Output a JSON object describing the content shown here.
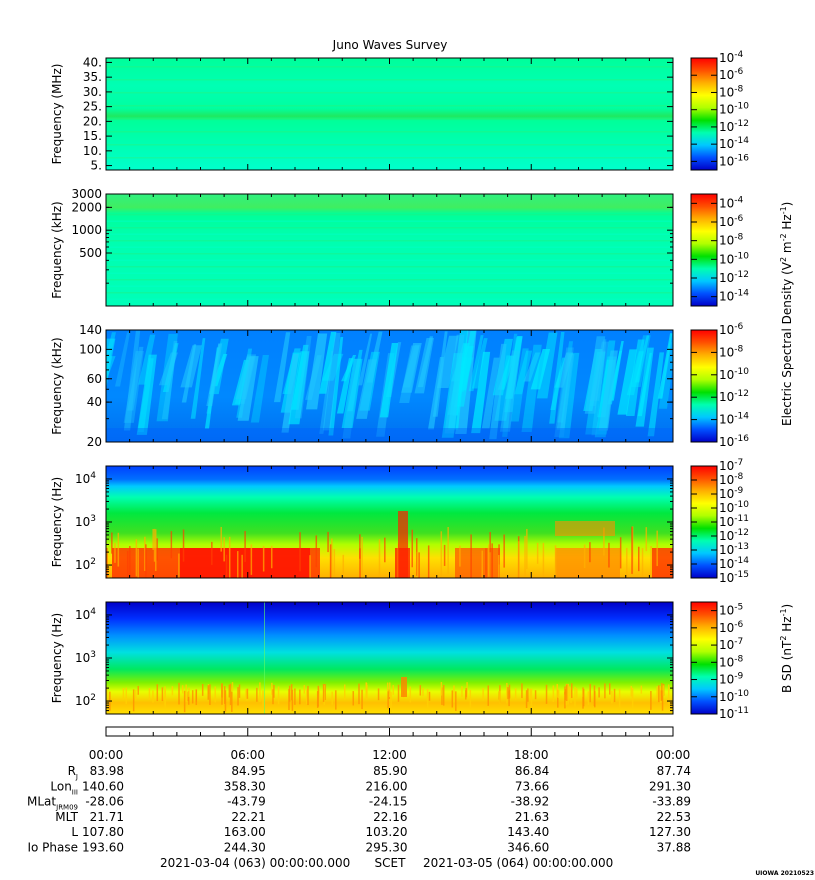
{
  "chart_data": {
    "type": "heatmap",
    "title": "Juno Waves Survey",
    "colorbar_colors": [
      "#0000c8",
      "#0050ff",
      "#00c8ff",
      "#00ffb0",
      "#00e000",
      "#b0ff00",
      "#ffff00",
      "#ffb000",
      "#ff5000",
      "#ff0000"
    ],
    "time_ticks": [
      "00:00",
      "06:00",
      "12:00",
      "18:00",
      "00:00"
    ],
    "panels": [
      {
        "ylabel": "Frequency (MHz)",
        "yscale": "linear",
        "yrange": [
          3.5,
          41.5
        ],
        "yticks": [
          "40.",
          "35.",
          "30.",
          "25.",
          "20.",
          "15.",
          "10.",
          "5."
        ],
        "ytick_values": [
          40,
          35,
          30,
          25,
          20,
          15,
          10,
          5
        ],
        "colorbar": {
          "exponents": [
            "-4",
            "-6",
            "-8",
            "-10",
            "-12",
            "-14",
            "-16"
          ],
          "min_exp": -17,
          "max_exp": -4
        }
      },
      {
        "ylabel": "Frequency (kHz)",
        "yscale": "log",
        "yrange": [
          100,
          3000
        ],
        "yticks": [
          "3000",
          "2000",
          "1000",
          "500"
        ],
        "ytick_values": [
          3000,
          2000,
          1000,
          500
        ],
        "colorbar": {
          "exponents": [
            "-4",
            "-6",
            "-8",
            "-10",
            "-12",
            "-14"
          ],
          "min_exp": -15,
          "max_exp": -3
        }
      },
      {
        "ylabel": "Frequency (kHz)",
        "yscale": "log",
        "yrange": [
          20,
          140
        ],
        "yticks": [
          "140",
          "100",
          "60",
          "40",
          "20"
        ],
        "ytick_values": [
          140,
          100,
          60,
          40,
          20
        ],
        "colorbar": {
          "exponents": [
            "-6",
            "-8",
            "-10",
            "-12",
            "-14",
            "-16"
          ],
          "min_exp": -16,
          "max_exp": -6
        }
      },
      {
        "ylabel": "Frequency (Hz)",
        "yscale": "log",
        "yrange": [
          50,
          20000
        ],
        "yticks": [
          "10",
          "10",
          "10"
        ],
        "ytick_exponents": [
          "4",
          "3",
          "2"
        ],
        "ytick_values": [
          10000,
          1000,
          100
        ],
        "colorbar": {
          "exponents": [
            "-7",
            "-8",
            "-9",
            "-10",
            "-11",
            "-12",
            "-13",
            "-14",
            "-15"
          ],
          "min_exp": -15,
          "max_exp": -7
        }
      },
      {
        "ylabel": "Frequency (Hz)",
        "yscale": "log",
        "yrange": [
          50,
          20000
        ],
        "yticks": [
          "10",
          "10",
          "10"
        ],
        "ytick_exponents": [
          "4",
          "3",
          "2"
        ],
        "ytick_values": [
          10000,
          1000,
          100
        ],
        "colorbar": {
          "exponents": [
            "-5",
            "-6",
            "-7",
            "-8",
            "-9",
            "-10",
            "-11"
          ],
          "min_exp": -11,
          "max_exp": -4.5
        }
      }
    ],
    "colorbar_labels": {
      "electric": {
        "base": "Electric Spectral Density (V",
        "sup1": "2",
        "mid": " m",
        "sup2": "-2",
        "mid2": " Hz",
        "sup3": "-1",
        "end": ")"
      },
      "magnetic": {
        "base": "B SD (nT",
        "sup1": "2",
        "mid": " Hz",
        "sup3": "-1",
        "end": ")"
      }
    },
    "ephemeris": {
      "rows": [
        {
          "label": "R",
          "sub": "J",
          "values": [
            "83.98",
            "84.95",
            "85.90",
            "86.84",
            "87.74"
          ]
        },
        {
          "label": "Lon",
          "sub": "III",
          "values": [
            "140.60",
            "358.30",
            "216.00",
            "73.66",
            "291.30"
          ]
        },
        {
          "label": "MLat",
          "sub": "JRM09",
          "values": [
            "-28.06",
            "-43.79",
            "-24.15",
            "-38.92",
            "-33.89"
          ]
        },
        {
          "label": "MLT",
          "sub": "",
          "values": [
            "21.71",
            "22.21",
            "22.16",
            "21.63",
            "22.53"
          ]
        },
        {
          "label": "L",
          "sub": "",
          "values": [
            "107.80",
            "163.00",
            "103.20",
            "143.40",
            "127.30"
          ]
        },
        {
          "label": "Io Phase",
          "sub": "",
          "values": [
            "193.60",
            "244.30",
            "295.30",
            "346.60",
            "37.88"
          ]
        }
      ]
    },
    "footer": {
      "start": "2021-03-04 (063) 00:00:00.000",
      "middle": "SCET",
      "end": "2021-03-05 (064) 00:00:00.000",
      "stamp": "UIOWA 20210523"
    }
  }
}
